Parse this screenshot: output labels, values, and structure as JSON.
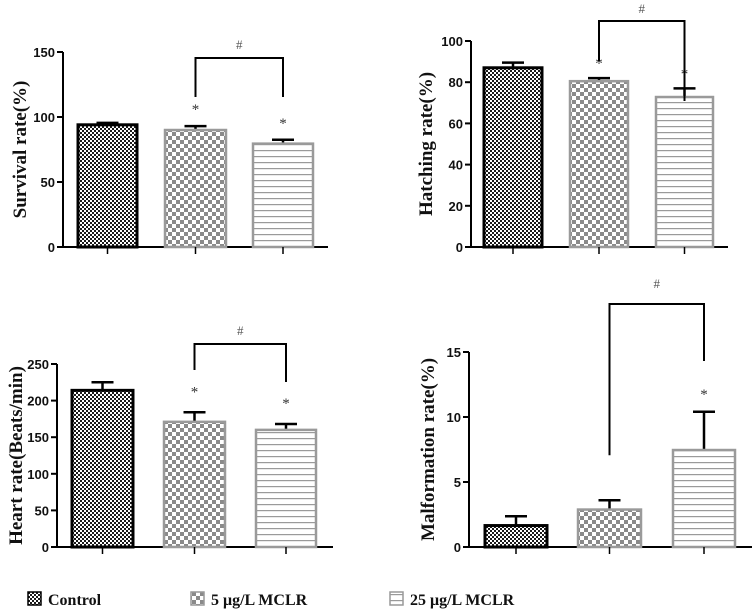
{
  "chart_data": [
    {
      "type": "bar",
      "title": "",
      "xlabel": "",
      "ylabel": "Survival rate(%)",
      "ylim": [
        0,
        150
      ],
      "yticks": [
        "0",
        "50",
        "100",
        "150"
      ],
      "categories": [
        "Control",
        "5 μg/L MCLR",
        "25 μg/L MCLR"
      ],
      "values": [
        94,
        90,
        79.5
      ],
      "error_upper": [
        95.5,
        93,
        82.5
      ],
      "significance_marks": [
        "",
        "*",
        "*"
      ],
      "bracket": {
        "from": 1,
        "to": 2,
        "label": "#"
      }
    },
    {
      "type": "bar",
      "title": "",
      "xlabel": "",
      "ylabel": "Hatching rate(%)",
      "ylim": [
        0,
        100
      ],
      "yticks": [
        "0",
        "20",
        "40",
        "60",
        "80",
        "100"
      ],
      "categories": [
        "Control",
        "5 μg/L MCLR",
        "25 μg/L MCLR"
      ],
      "values": [
        87,
        80.5,
        72.8
      ],
      "error_upper": [
        89.5,
        82,
        77
      ],
      "significance_marks": [
        "",
        "*",
        "*"
      ],
      "bracket": {
        "from": 1,
        "to": 2,
        "label": "#"
      }
    },
    {
      "type": "bar",
      "title": "",
      "xlabel": "",
      "ylabel": "Heart rate(Beats/min)",
      "ylim": [
        0,
        250
      ],
      "yticks": [
        "0",
        "50",
        "100",
        "150",
        "200",
        "250"
      ],
      "categories": [
        "Control",
        "5 μg/L MCLR",
        "25 μg/L MCLR"
      ],
      "values": [
        214,
        171,
        160
      ],
      "error_upper": [
        225,
        184,
        168
      ],
      "significance_marks": [
        "",
        "*",
        "*"
      ],
      "bracket": {
        "from": 1,
        "to": 2,
        "label": "#"
      }
    },
    {
      "type": "bar",
      "title": "",
      "xlabel": "",
      "ylabel": "Malformation rate(%)",
      "ylim": [
        0,
        15
      ],
      "yticks": [
        "0",
        "5",
        "10",
        "15"
      ],
      "categories": [
        "Control",
        "5 μg/L MCLR",
        "25 μg/L MCLR"
      ],
      "values": [
        1.65,
        2.88,
        7.46
      ],
      "error_upper": [
        2.37,
        3.6,
        10.4
      ],
      "significance_marks": [
        "",
        "",
        "*"
      ],
      "bracket": {
        "from": 1,
        "to": 2,
        "label": "#"
      }
    }
  ],
  "legend": {
    "placement": "bottom",
    "items": [
      {
        "label": "Control",
        "pattern": "dense-checker",
        "stroke": "#000000"
      },
      {
        "label": "5 μg/L MCLR",
        "pattern": "coarse-checker",
        "stroke": "#999999"
      },
      {
        "label": "25 μg/L MCLR",
        "pattern": "horizontal-lines",
        "stroke": "#999999"
      }
    ]
  },
  "colors": {
    "axis": "#000000",
    "control_stroke": "#000000",
    "treated_stroke": "#9a9a9a"
  }
}
